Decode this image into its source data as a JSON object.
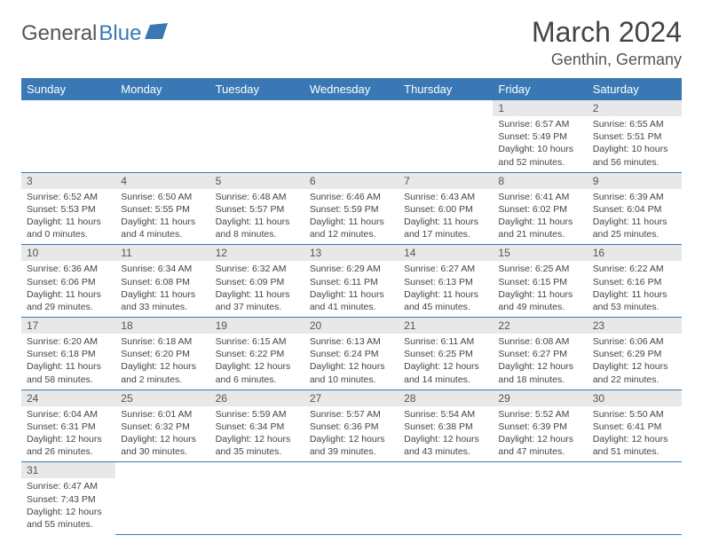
{
  "brand": {
    "part1": "General",
    "part2": "Blue"
  },
  "title": "March 2024",
  "location": "Genthin, Germany",
  "colors": {
    "header_bg": "#3a78b5",
    "daynum_bg": "#e8e8e8"
  },
  "weekdays": [
    "Sunday",
    "Monday",
    "Tuesday",
    "Wednesday",
    "Thursday",
    "Friday",
    "Saturday"
  ],
  "weeks": [
    [
      null,
      null,
      null,
      null,
      null,
      {
        "n": "1",
        "sr": "Sunrise: 6:57 AM",
        "ss": "Sunset: 5:49 PM",
        "dl": "Daylight: 10 hours and 52 minutes."
      },
      {
        "n": "2",
        "sr": "Sunrise: 6:55 AM",
        "ss": "Sunset: 5:51 PM",
        "dl": "Daylight: 10 hours and 56 minutes."
      }
    ],
    [
      {
        "n": "3",
        "sr": "Sunrise: 6:52 AM",
        "ss": "Sunset: 5:53 PM",
        "dl": "Daylight: 11 hours and 0 minutes."
      },
      {
        "n": "4",
        "sr": "Sunrise: 6:50 AM",
        "ss": "Sunset: 5:55 PM",
        "dl": "Daylight: 11 hours and 4 minutes."
      },
      {
        "n": "5",
        "sr": "Sunrise: 6:48 AM",
        "ss": "Sunset: 5:57 PM",
        "dl": "Daylight: 11 hours and 8 minutes."
      },
      {
        "n": "6",
        "sr": "Sunrise: 6:46 AM",
        "ss": "Sunset: 5:59 PM",
        "dl": "Daylight: 11 hours and 12 minutes."
      },
      {
        "n": "7",
        "sr": "Sunrise: 6:43 AM",
        "ss": "Sunset: 6:00 PM",
        "dl": "Daylight: 11 hours and 17 minutes."
      },
      {
        "n": "8",
        "sr": "Sunrise: 6:41 AM",
        "ss": "Sunset: 6:02 PM",
        "dl": "Daylight: 11 hours and 21 minutes."
      },
      {
        "n": "9",
        "sr": "Sunrise: 6:39 AM",
        "ss": "Sunset: 6:04 PM",
        "dl": "Daylight: 11 hours and 25 minutes."
      }
    ],
    [
      {
        "n": "10",
        "sr": "Sunrise: 6:36 AM",
        "ss": "Sunset: 6:06 PM",
        "dl": "Daylight: 11 hours and 29 minutes."
      },
      {
        "n": "11",
        "sr": "Sunrise: 6:34 AM",
        "ss": "Sunset: 6:08 PM",
        "dl": "Daylight: 11 hours and 33 minutes."
      },
      {
        "n": "12",
        "sr": "Sunrise: 6:32 AM",
        "ss": "Sunset: 6:09 PM",
        "dl": "Daylight: 11 hours and 37 minutes."
      },
      {
        "n": "13",
        "sr": "Sunrise: 6:29 AM",
        "ss": "Sunset: 6:11 PM",
        "dl": "Daylight: 11 hours and 41 minutes."
      },
      {
        "n": "14",
        "sr": "Sunrise: 6:27 AM",
        "ss": "Sunset: 6:13 PM",
        "dl": "Daylight: 11 hours and 45 minutes."
      },
      {
        "n": "15",
        "sr": "Sunrise: 6:25 AM",
        "ss": "Sunset: 6:15 PM",
        "dl": "Daylight: 11 hours and 49 minutes."
      },
      {
        "n": "16",
        "sr": "Sunrise: 6:22 AM",
        "ss": "Sunset: 6:16 PM",
        "dl": "Daylight: 11 hours and 53 minutes."
      }
    ],
    [
      {
        "n": "17",
        "sr": "Sunrise: 6:20 AM",
        "ss": "Sunset: 6:18 PM",
        "dl": "Daylight: 11 hours and 58 minutes."
      },
      {
        "n": "18",
        "sr": "Sunrise: 6:18 AM",
        "ss": "Sunset: 6:20 PM",
        "dl": "Daylight: 12 hours and 2 minutes."
      },
      {
        "n": "19",
        "sr": "Sunrise: 6:15 AM",
        "ss": "Sunset: 6:22 PM",
        "dl": "Daylight: 12 hours and 6 minutes."
      },
      {
        "n": "20",
        "sr": "Sunrise: 6:13 AM",
        "ss": "Sunset: 6:24 PM",
        "dl": "Daylight: 12 hours and 10 minutes."
      },
      {
        "n": "21",
        "sr": "Sunrise: 6:11 AM",
        "ss": "Sunset: 6:25 PM",
        "dl": "Daylight: 12 hours and 14 minutes."
      },
      {
        "n": "22",
        "sr": "Sunrise: 6:08 AM",
        "ss": "Sunset: 6:27 PM",
        "dl": "Daylight: 12 hours and 18 minutes."
      },
      {
        "n": "23",
        "sr": "Sunrise: 6:06 AM",
        "ss": "Sunset: 6:29 PM",
        "dl": "Daylight: 12 hours and 22 minutes."
      }
    ],
    [
      {
        "n": "24",
        "sr": "Sunrise: 6:04 AM",
        "ss": "Sunset: 6:31 PM",
        "dl": "Daylight: 12 hours and 26 minutes."
      },
      {
        "n": "25",
        "sr": "Sunrise: 6:01 AM",
        "ss": "Sunset: 6:32 PM",
        "dl": "Daylight: 12 hours and 30 minutes."
      },
      {
        "n": "26",
        "sr": "Sunrise: 5:59 AM",
        "ss": "Sunset: 6:34 PM",
        "dl": "Daylight: 12 hours and 35 minutes."
      },
      {
        "n": "27",
        "sr": "Sunrise: 5:57 AM",
        "ss": "Sunset: 6:36 PM",
        "dl": "Daylight: 12 hours and 39 minutes."
      },
      {
        "n": "28",
        "sr": "Sunrise: 5:54 AM",
        "ss": "Sunset: 6:38 PM",
        "dl": "Daylight: 12 hours and 43 minutes."
      },
      {
        "n": "29",
        "sr": "Sunrise: 5:52 AM",
        "ss": "Sunset: 6:39 PM",
        "dl": "Daylight: 12 hours and 47 minutes."
      },
      {
        "n": "30",
        "sr": "Sunrise: 5:50 AM",
        "ss": "Sunset: 6:41 PM",
        "dl": "Daylight: 12 hours and 51 minutes."
      }
    ],
    [
      {
        "n": "31",
        "sr": "Sunrise: 6:47 AM",
        "ss": "Sunset: 7:43 PM",
        "dl": "Daylight: 12 hours and 55 minutes."
      },
      null,
      null,
      null,
      null,
      null,
      null
    ]
  ]
}
